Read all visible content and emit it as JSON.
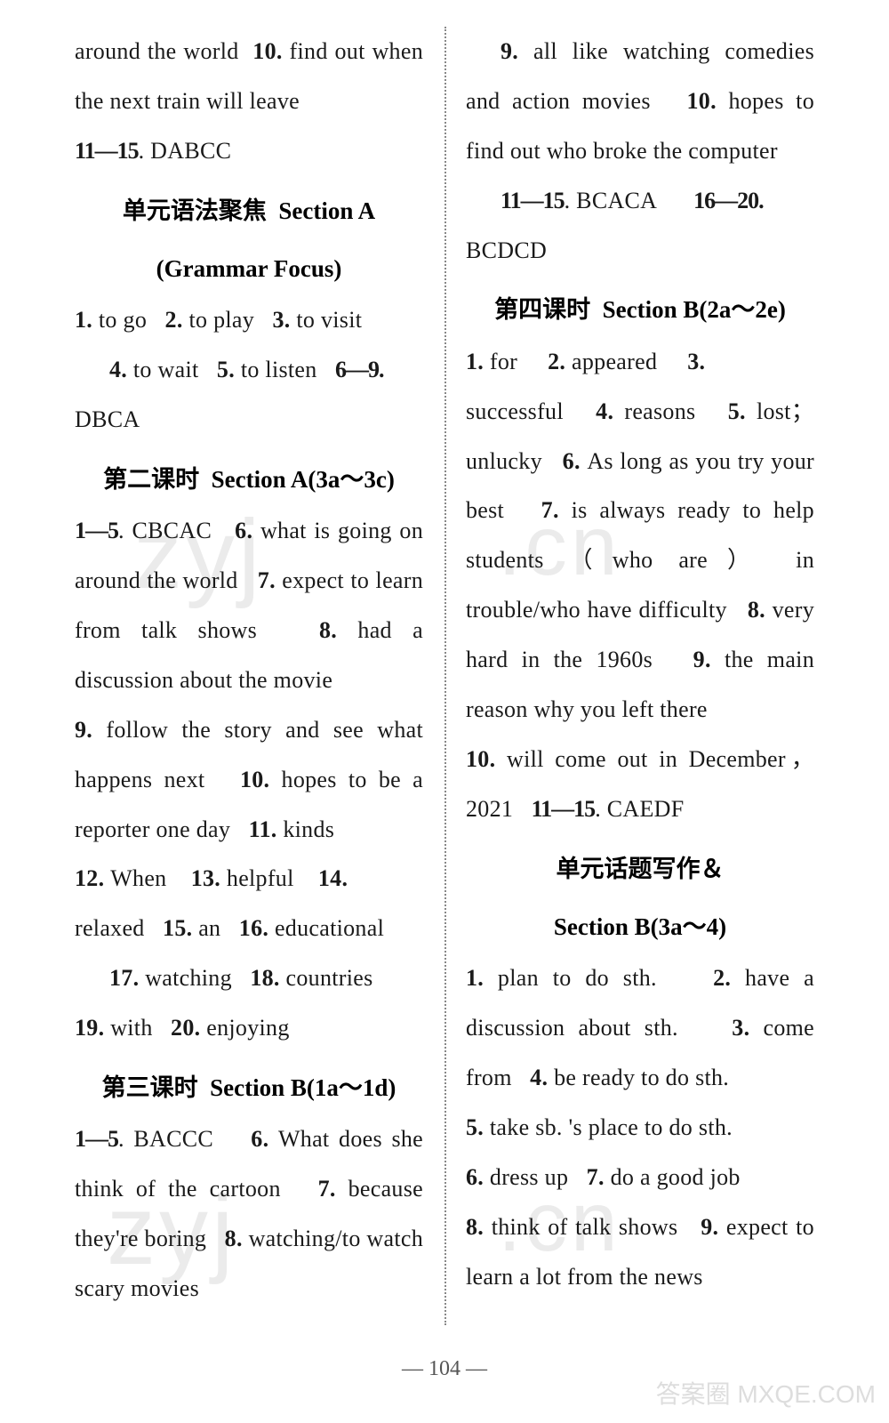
{
  "left": {
    "p1_a": "around the world",
    "p1_b": "find out when the next train will leave",
    "p2_range": "11—15",
    "p2_ans": ". DABCC",
    "sec1_cn": "单元语法聚焦",
    "sec1_en": "Section A",
    "sec1_sub": "(Grammar Focus)",
    "p3_1": "to go",
    "p3_2": "to play",
    "p3_3": "to visit",
    "p4_4": "to wait",
    "p4_5": "to listen",
    "p4_range": "6—9",
    "p4_ans": "DBCA",
    "sec2_cn": "第二课时",
    "sec2_en": "Section A(3a～3c)",
    "p5_range": "1—5",
    "p5_ans": ". CBCAC",
    "p5_6": "what is going on around the world",
    "p5_7": "expect to learn from talk shows",
    "p5_8": "had a discussion about the movie",
    "p5_9": "follow the story and see what happens next",
    "p5_10": "hopes to be a reporter one day",
    "p5_11": "kinds",
    "p5_12": "When",
    "p5_13": "helpful",
    "p5_14": "relaxed",
    "p5_15": "an",
    "p5_16": "educational",
    "p5_17": "watching",
    "p5_18": "countries",
    "p5_19": "with",
    "p5_20": "enjoying",
    "sec3_cn": "第三课时",
    "sec3_en": "Section B(1a～1d)",
    "p6_range": "1—5",
    "p6_ans": ". BACCC",
    "p6_6": "What does she think of the cartoon",
    "p6_7": "because they're boring",
    "p6_8": "watching/to watch scary movies"
  },
  "right": {
    "p1_9": "all like watching comedies and action movies",
    "p1_10": "hopes to find out who broke the computer",
    "p2_r1": "11—15",
    "p2_a1": ". BCACA",
    "p2_r2": "16—20",
    "p2_a2": "BCDCD",
    "sec4_cn": "第四课时",
    "sec4_en": "Section B(2a～2e)",
    "p3_1": "for",
    "p3_2": "appeared",
    "p3_3": "successful",
    "p3_4": "reasons",
    "p3_5": "lost；unlucky",
    "p3_6": "As long as you try your best",
    "p3_7": "is always ready to help students （who are） in trouble/who have difficulty",
    "p3_8": "very hard in the 1960s",
    "p3_9": "the main reason why you left there",
    "p3_10": "will come out in December，2021",
    "p3_r": "11—15",
    "p3_a": ". CAEDF",
    "sec5_cn": "单元话题写作＆",
    "sec5_en": "Section B(3a～4)",
    "p4_1": "plan to do sth.",
    "p4_2": "have a discussion about sth.",
    "p4_3": "come from",
    "p4_4": "be ready to do sth.",
    "p4_5": "take sb. 's place to do sth.",
    "p4_6": "dress up",
    "p4_7": "do a good job",
    "p4_8": "think of talk shows",
    "p4_9": "expect to learn a lot from the news"
  },
  "page_number": "104",
  "watermarks": {
    "wm1": "zyj",
    "wm2": ".cn",
    "wm3": "zyj",
    "wm4": ".cn"
  },
  "corner": "答案圈\nMXQE.COM"
}
